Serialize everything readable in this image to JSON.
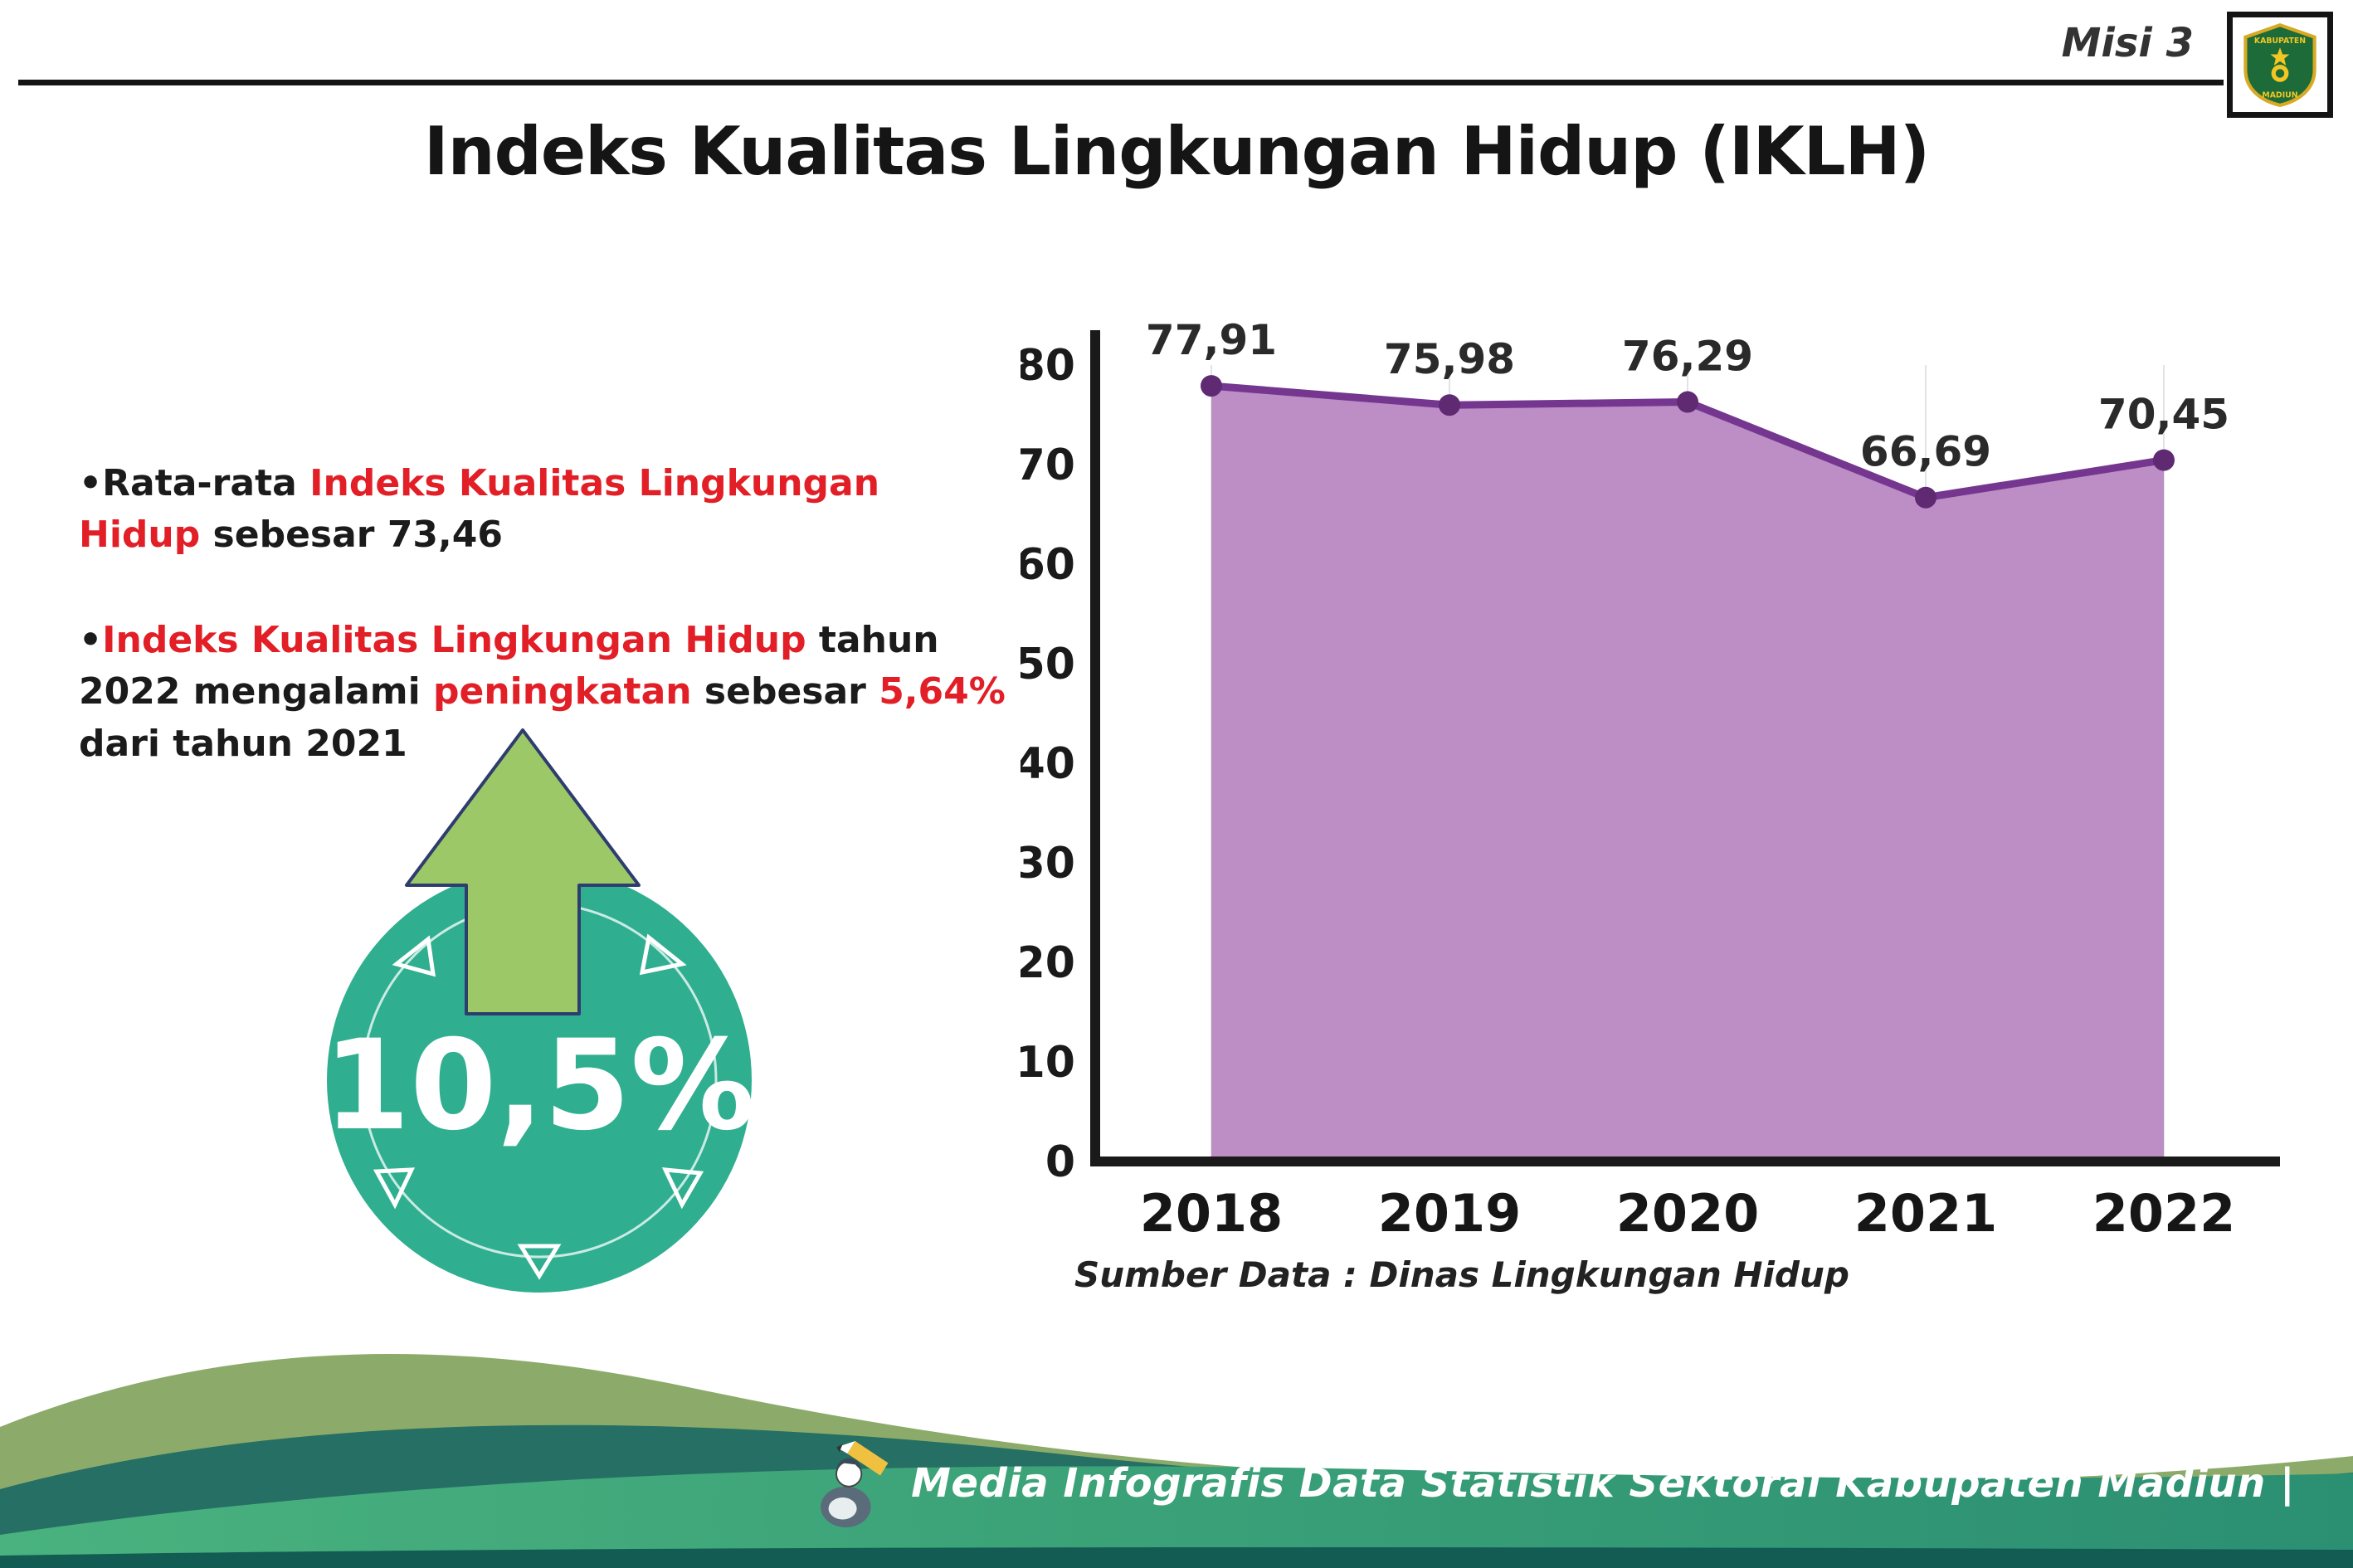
{
  "header": {
    "misi": "Misi 3",
    "title": "Indeks Kualitas Lingkungan Hidup (IKLH)"
  },
  "logo": {
    "top_text": "KABUPATEN",
    "bottom_text": "MADIUN"
  },
  "bullets": {
    "b1": {
      "seg1": "Rata-rata ",
      "seg2": "Indeks Kualitas Lingkungan Hidup",
      "seg3": " sebesar 73,46"
    },
    "b2": {
      "seg1": "Indeks Kualitas Lingkungan Hidup",
      "seg2": " tahun 2022 mengalami ",
      "seg3": "peningkatan",
      "seg4": " sebesar ",
      "seg5": "5,64%",
      "seg6": " dari tahun 2021"
    }
  },
  "badge": {
    "value": "10,5%",
    "circle_color": "#2fae90",
    "arrow_color": "#9cc868"
  },
  "chart_data": {
    "type": "area",
    "title": "Indeks Kualitas Lingkungan Hidup (IKLH)",
    "categories": [
      "2018",
      "2019",
      "2020",
      "2021",
      "2022"
    ],
    "values": [
      77.91,
      75.98,
      76.29,
      66.69,
      70.45
    ],
    "point_labels": [
      "77,91",
      "75,98",
      "76,29",
      "66,69",
      "70,45"
    ],
    "ylim": [
      0,
      80
    ],
    "ytick_step": 10,
    "grid": "vertical-light",
    "legend": "none",
    "line_color": "#74368f",
    "fill_color": "#bd8dc6",
    "marker_color": "#5f2a72",
    "source": "Sumber Data : Dinas Lingkungan Hidup"
  },
  "footer": {
    "text": "Media Infografis Data Statistik Sektoral Kabupaten Madiun |"
  }
}
